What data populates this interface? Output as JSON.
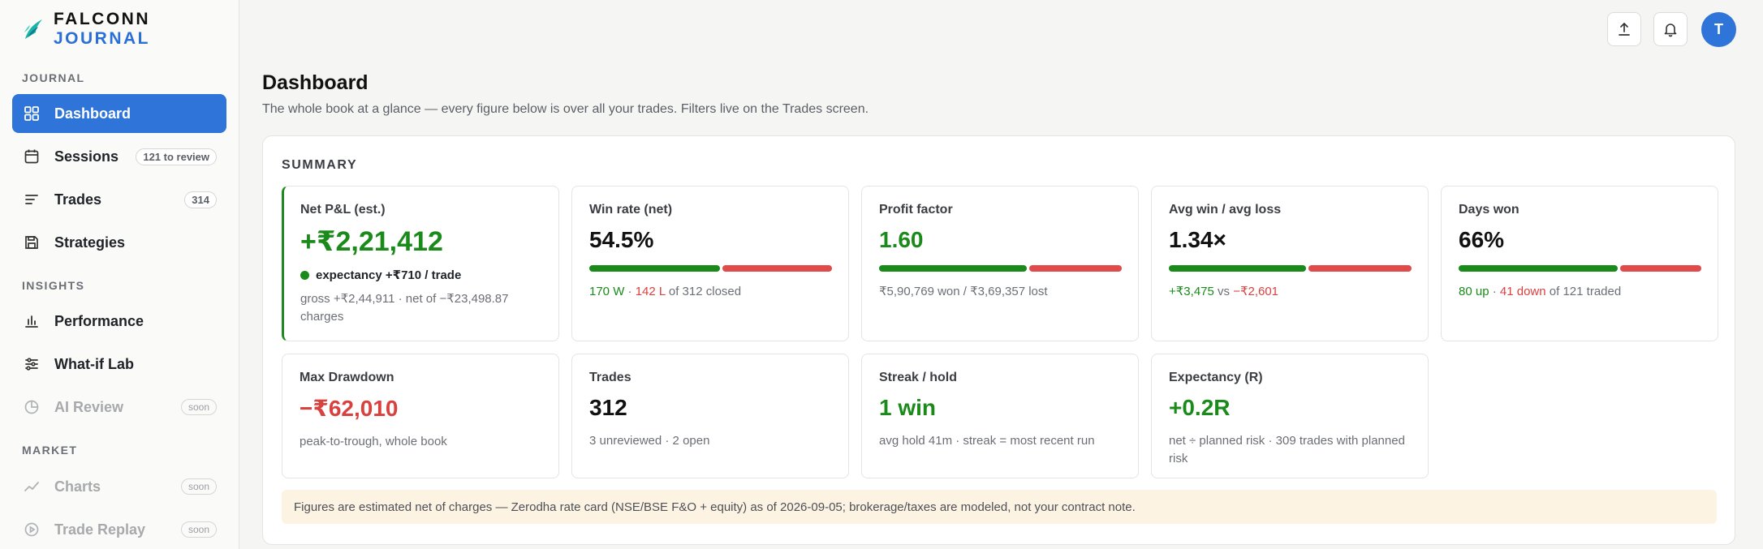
{
  "brand": {
    "word1": "FALCONN",
    "word2": "JOURNAL"
  },
  "sidebar": {
    "sections": [
      {
        "label": "JOURNAL"
      },
      {
        "label": "INSIGHTS"
      },
      {
        "label": "MARKET"
      }
    ],
    "items": [
      {
        "label": "Dashboard",
        "icon": "grid-icon",
        "active": true
      },
      {
        "label": "Sessions",
        "icon": "calendar-icon",
        "badge": "121 to review"
      },
      {
        "label": "Trades",
        "icon": "list-icon",
        "badge": "314"
      },
      {
        "label": "Strategies",
        "icon": "save-icon"
      },
      {
        "label": "Performance",
        "icon": "bar-chart-icon"
      },
      {
        "label": "What-if Lab",
        "icon": "sliders-icon"
      },
      {
        "label": "AI Review",
        "icon": "pie-icon",
        "badge": "soon",
        "disabled": true
      },
      {
        "label": "Charts",
        "icon": "trend-icon",
        "badge": "soon",
        "disabled": true
      },
      {
        "label": "Trade Replay",
        "icon": "play-icon",
        "badge": "soon",
        "disabled": true
      }
    ]
  },
  "topbar": {
    "avatar_initial": "T"
  },
  "header": {
    "title": "Dashboard",
    "subtitle": "The whole book at a glance — every figure below is over all your trades. Filters live on the Trades screen."
  },
  "summary": {
    "title": "SUMMARY",
    "net_pnl": {
      "label": "Net P&L (est.)",
      "value": "+₹2,21,412",
      "expectancy": "expectancy +₹710 / trade",
      "note": "gross +₹2,44,911 · net of −₹23,498.87 charges"
    },
    "win_rate": {
      "label": "Win rate (net)",
      "value": "54.5%",
      "bar_fraction": 0.545,
      "wins": "170 W",
      "sep": "·",
      "losses": "142 L",
      "tail": "of 312 closed"
    },
    "profit_factor": {
      "label": "Profit factor",
      "value": "1.60",
      "bar_fraction": 0.615,
      "note": "₹5,90,769 won / ₹3,69,357 lost"
    },
    "avg_win_loss": {
      "label": "Avg win / avg loss",
      "value": "1.34×",
      "bar_fraction": 0.572,
      "win": "+₹3,475",
      "vs": "vs",
      "loss": "−₹2,601"
    },
    "days_won": {
      "label": "Days won",
      "value": "66%",
      "bar_fraction": 0.661,
      "up": "80 up",
      "sep": "·",
      "down": "41 down",
      "tail": "of 121 traded"
    },
    "max_drawdown": {
      "label": "Max Drawdown",
      "value": "−₹62,010",
      "note": "peak-to-trough, whole book"
    },
    "trades": {
      "label": "Trades",
      "value": "312",
      "note": "3 unreviewed · 2 open"
    },
    "streak": {
      "label": "Streak / hold",
      "value": "1 win",
      "note": "avg hold 41m · streak = most recent run"
    },
    "expectancy_r": {
      "label": "Expectancy (R)",
      "value": "+0.2R",
      "note": "net ÷ planned risk · 309 trades with planned risk"
    },
    "footnote": "Figures are estimated net of charges — Zerodha rate card (NSE/BSE F&O + equity) as of 2026-09-05; brokerage/taxes are modeled, not your contract note."
  },
  "colors": {
    "accent": "#2f74d8",
    "positive": "#1a8a1a",
    "negative": "#d9413f",
    "note_bg": "#fdf3e3"
  }
}
